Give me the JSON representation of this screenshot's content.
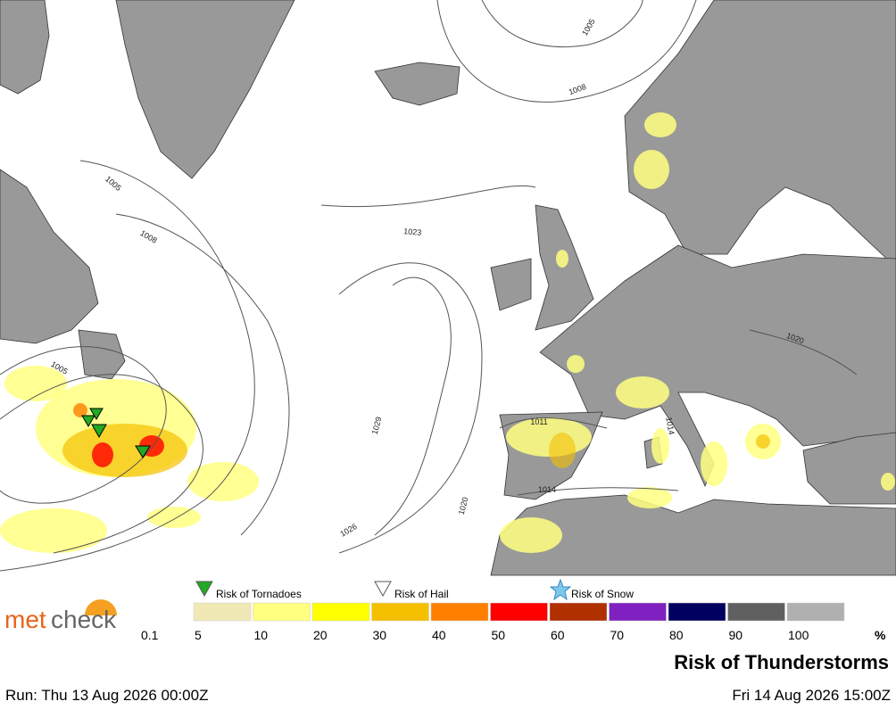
{
  "map": {
    "isobar_labels": [
      "1005",
      "1008",
      "1005",
      "1008",
      "1005",
      "1023",
      "1029",
      "1026",
      "1020",
      "1011",
      "1014",
      "1014",
      "1020"
    ],
    "land_color": "#999999",
    "sea_color": "#ffffff"
  },
  "logo": {
    "parts": [
      "met",
      "check"
    ],
    "colors": [
      "#e8641a",
      "#666666"
    ]
  },
  "legend": {
    "symbols": [
      {
        "label": "Risk of Tornadoes",
        "color": "#22aa22"
      },
      {
        "label": "Risk of Hail",
        "color": "#ffffff"
      },
      {
        "label": "Risk of Snow",
        "color": "#7ec8ee"
      }
    ],
    "scale_labels": [
      "0.1",
      "5",
      "10",
      "20",
      "30",
      "40",
      "50",
      "60",
      "70",
      "80",
      "90",
      "100"
    ],
    "scale_colors": [
      "#f0e9b6",
      "#ffff80",
      "#ffff00",
      "#f5c000",
      "#ff8000",
      "#ff0000",
      "#b03000",
      "#8020c0",
      "#000060",
      "#606060",
      "#b0b0b0"
    ],
    "unit": "%"
  },
  "title": "Risk of Thunderstorms",
  "run": "Run: Thu 13 Aug 2026 00:00Z",
  "valid": "Fri 14 Aug 2026 15:00Z"
}
